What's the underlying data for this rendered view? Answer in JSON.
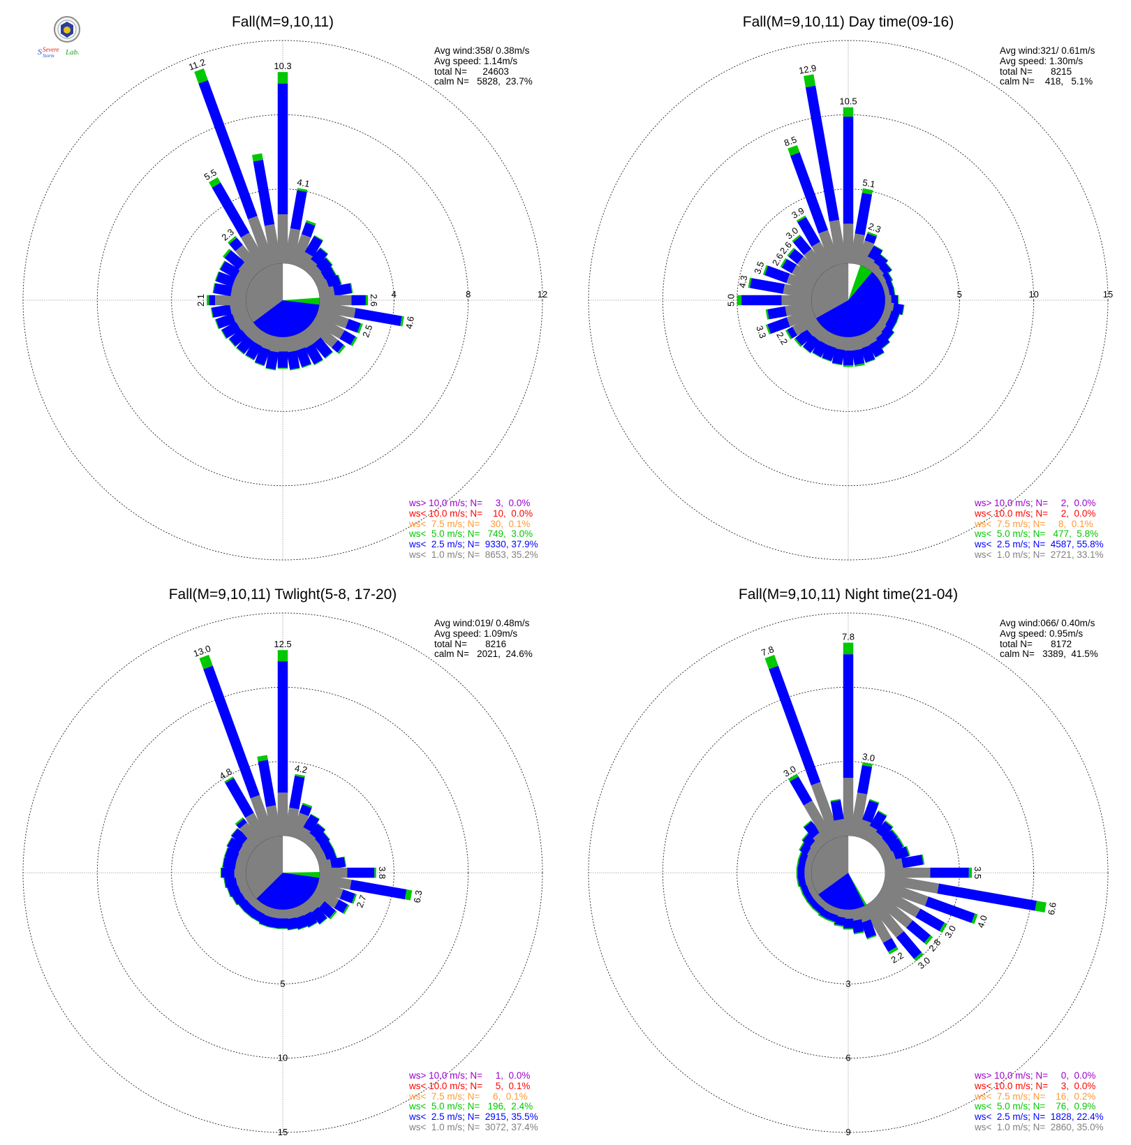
{
  "logo": {
    "text_a": "Severe",
    "text_b": "Storm",
    "text_c": "Lab."
  },
  "colors": {
    "calm": "#808080",
    "b1": "#808080",
    "b2": "#0000ff",
    "b3": "#00c800",
    "b4": "#ff9933",
    "b5": "#ff0000",
    "b6": "#9900cc"
  },
  "chart_data": [
    {
      "type": "polar-bar",
      "title": "Fall(M=9,10,11)",
      "stats": {
        "avg_wind": "Avg wind:358/ 0.38m/s",
        "avg_speed": "Avg speed: 1.14m/s",
        "total": "total N=      24603",
        "calm": "calm N=   5828,  23.7%"
      },
      "calm_pct": 23.7,
      "calm_split": [
        35.2,
        37.9,
        3.0
      ],
      "rings": [
        4,
        8,
        12
      ],
      "ring_label_axis": "east",
      "bars": [
        {
          "dir": 0,
          "total": 10.3,
          "label": "10.3"
        },
        {
          "dir": 10,
          "total": 4.1,
          "label": "4.1"
        },
        {
          "dir": 20,
          "total": 2.5
        },
        {
          "dir": 30,
          "total": 1.9
        },
        {
          "dir": 40,
          "total": 1.5
        },
        {
          "dir": 50,
          "total": 1.3
        },
        {
          "dir": 60,
          "total": 1.2
        },
        {
          "dir": 70,
          "total": 1.3
        },
        {
          "dir": 80,
          "total": 1.8
        },
        {
          "dir": 90,
          "total": 2.6,
          "label": "2.6"
        },
        {
          "dir": 100,
          "total": 4.6,
          "label": "4.6"
        },
        {
          "dir": 110,
          "total": 2.5,
          "label": "2.5"
        },
        {
          "dir": 120,
          "total": 2.5
        },
        {
          "dir": 130,
          "total": 2.2
        },
        {
          "dir": 140,
          "total": 1.9
        },
        {
          "dir": 150,
          "total": 1.9
        },
        {
          "dir": 160,
          "total": 1.8
        },
        {
          "dir": 170,
          "total": 1.8
        },
        {
          "dir": 180,
          "total": 1.7
        },
        {
          "dir": 190,
          "total": 1.8
        },
        {
          "dir": 200,
          "total": 1.7
        },
        {
          "dir": 210,
          "total": 1.6
        },
        {
          "dir": 220,
          "total": 1.6
        },
        {
          "dir": 230,
          "total": 1.6
        },
        {
          "dir": 240,
          "total": 1.7
        },
        {
          "dir": 250,
          "total": 1.8
        },
        {
          "dir": 260,
          "total": 1.9
        },
        {
          "dir": 270,
          "total": 2.1,
          "label": "2.1"
        },
        {
          "dir": 280,
          "total": 1.8
        },
        {
          "dir": 290,
          "total": 1.8
        },
        {
          "dir": 300,
          "total": 1.8
        },
        {
          "dir": 310,
          "total": 2.0
        },
        {
          "dir": 320,
          "total": 2.3,
          "label": "2.3"
        },
        {
          "dir": 330,
          "total": 5.5,
          "label": "5.5"
        },
        {
          "dir": 340,
          "total": 11.2,
          "label": "11.2"
        },
        {
          "dir": 350,
          "total": 6.0
        }
      ],
      "legend": [
        {
          "text": "ws> 10.0 m/s; N=     3,  0.0%",
          "color": "#9900cc"
        },
        {
          "text": "ws< 10.0 m/s; N=    10,  0.0%",
          "color": "#ff0000"
        },
        {
          "text": "ws<  7.5 m/s; N=    30,  0.1%",
          "color": "#ff9933"
        },
        {
          "text": "ws<  5.0 m/s; N=   749,  3.0%",
          "color": "#00c800"
        },
        {
          "text": "ws<  2.5 m/s; N=  9330, 37.9%",
          "color": "#0000ff"
        },
        {
          "text": "ws<  1.0 m/s; N=  8653, 35.2%",
          "color": "#808080"
        }
      ]
    },
    {
      "type": "polar-bar",
      "title": "Fall(M=9,10,11) Day time(09-16)",
      "stats": {
        "avg_wind": "Avg wind:321/ 0.61m/s",
        "avg_speed": "Avg speed: 1.30m/s",
        "total": "total N=       8215",
        "calm": "calm N=    418,   5.1%"
      },
      "calm_pct": 5.1,
      "calm_split": [
        33.1,
        55.8,
        5.8
      ],
      "rings": [
        5,
        10,
        15
      ],
      "ring_label_axis": "east",
      "bars": [
        {
          "dir": 0,
          "total": 10.5,
          "label": "10.5"
        },
        {
          "dir": 10,
          "total": 5.1,
          "label": "5.1"
        },
        {
          "dir": 20,
          "total": 2.3,
          "label": "2.3"
        },
        {
          "dir": 30,
          "total": 1.6
        },
        {
          "dir": 40,
          "total": 1.3
        },
        {
          "dir": 50,
          "total": 1.1
        },
        {
          "dir": 60,
          "total": 0.8
        },
        {
          "dir": 70,
          "total": 0.7
        },
        {
          "dir": 80,
          "total": 0.7
        },
        {
          "dir": 90,
          "total": 0.9
        },
        {
          "dir": 100,
          "total": 1.3
        },
        {
          "dir": 110,
          "total": 1.1
        },
        {
          "dir": 120,
          "total": 1.1
        },
        {
          "dir": 130,
          "total": 1.3
        },
        {
          "dir": 140,
          "total": 1.5
        },
        {
          "dir": 150,
          "total": 1.8
        },
        {
          "dir": 160,
          "total": 1.9
        },
        {
          "dir": 170,
          "total": 2.0
        },
        {
          "dir": 180,
          "total": 2.0
        },
        {
          "dir": 190,
          "total": 1.9
        },
        {
          "dir": 200,
          "total": 1.8
        },
        {
          "dir": 210,
          "total": 1.8
        },
        {
          "dir": 220,
          "total": 1.9
        },
        {
          "dir": 230,
          "total": 2.0
        },
        {
          "dir": 240,
          "total": 2.2,
          "label": "2.2"
        },
        {
          "dir": 250,
          "total": 3.3,
          "label": "3.3"
        },
        {
          "dir": 260,
          "total": 3.1
        },
        {
          "dir": 270,
          "total": 5.0,
          "label": "5.0"
        },
        {
          "dir": 280,
          "total": 4.3,
          "label": "4.3"
        },
        {
          "dir": 290,
          "total": 3.5,
          "label": "3.5"
        },
        {
          "dir": 300,
          "total": 2.6,
          "label": "2.6"
        },
        {
          "dir": 310,
          "total": 2.6,
          "label": "2.6"
        },
        {
          "dir": 320,
          "total": 3.0,
          "label": "3.0"
        },
        {
          "dir": 330,
          "total": 3.9,
          "label": "3.9"
        },
        {
          "dir": 340,
          "total": 8.5,
          "label": "8.5"
        },
        {
          "dir": 350,
          "total": 12.9,
          "label": "12.9"
        }
      ],
      "legend": [
        {
          "text": "ws> 10.0 m/s; N=     2,  0.0%",
          "color": "#9900cc"
        },
        {
          "text": "ws< 10.0 m/s; N=     2,  0.0%",
          "color": "#ff0000"
        },
        {
          "text": "ws<  7.5 m/s; N=     8,  0.1%",
          "color": "#ff9933"
        },
        {
          "text": "ws<  5.0 m/s; N=   477,  5.8%",
          "color": "#00c800"
        },
        {
          "text": "ws<  2.5 m/s; N=  4587, 55.8%",
          "color": "#0000ff"
        },
        {
          "text": "ws<  1.0 m/s; N=  2721, 33.1%",
          "color": "#808080"
        }
      ]
    },
    {
      "type": "polar-bar",
      "title": "Fall(M=9,10,11) Twlight(5-8, 17-20)",
      "stats": {
        "avg_wind": "Avg wind:019/ 0.48m/s",
        "avg_speed": "Avg speed: 1.09m/s",
        "total": "total N=       8216",
        "calm": "calm N=   2021,  24.6%"
      },
      "calm_pct": 24.6,
      "calm_split": [
        37.4,
        35.5,
        2.4
      ],
      "rings": [
        5,
        10,
        15
      ],
      "ring_label_axis": "south",
      "bars": [
        {
          "dir": 0,
          "total": 12.5,
          "label": "12.5"
        },
        {
          "dir": 10,
          "total": 4.2,
          "label": "4.2"
        },
        {
          "dir": 20,
          "total": 2.4
        },
        {
          "dir": 30,
          "total": 1.9
        },
        {
          "dir": 40,
          "total": 1.6
        },
        {
          "dir": 50,
          "total": 1.4
        },
        {
          "dir": 60,
          "total": 1.3
        },
        {
          "dir": 70,
          "total": 1.3
        },
        {
          "dir": 80,
          "total": 1.8
        },
        {
          "dir": 90,
          "total": 3.8,
          "label": "3.8"
        },
        {
          "dir": 100,
          "total": 6.3,
          "label": "6.3"
        },
        {
          "dir": 110,
          "total": 2.7,
          "label": "2.7"
        },
        {
          "dir": 120,
          "total": 2.5
        },
        {
          "dir": 130,
          "total": 2.0
        },
        {
          "dir": 140,
          "total": 1.8
        },
        {
          "dir": 150,
          "total": 1.6
        },
        {
          "dir": 160,
          "total": 1.5
        },
        {
          "dir": 170,
          "total": 1.4
        },
        {
          "dir": 180,
          "total": 1.3
        },
        {
          "dir": 190,
          "total": 1.3
        },
        {
          "dir": 200,
          "total": 1.3
        },
        {
          "dir": 210,
          "total": 1.2
        },
        {
          "dir": 220,
          "total": 1.2
        },
        {
          "dir": 230,
          "total": 1.2
        },
        {
          "dir": 240,
          "total": 1.3
        },
        {
          "dir": 250,
          "total": 1.4
        },
        {
          "dir": 260,
          "total": 1.5
        },
        {
          "dir": 270,
          "total": 1.7
        },
        {
          "dir": 280,
          "total": 1.6
        },
        {
          "dir": 290,
          "total": 1.6
        },
        {
          "dir": 300,
          "total": 1.7
        },
        {
          "dir": 310,
          "total": 1.8
        },
        {
          "dir": 320,
          "total": 2.1
        },
        {
          "dir": 330,
          "total": 4.8,
          "label": "4.8"
        },
        {
          "dir": 340,
          "total": 13.0,
          "label": "13.0"
        },
        {
          "dir": 350,
          "total": 5.5
        }
      ],
      "legend": [
        {
          "text": "ws> 10.0 m/s; N=     1,  0.0%",
          "color": "#9900cc"
        },
        {
          "text": "ws< 10.0 m/s; N=     5,  0.1%",
          "color": "#ff0000"
        },
        {
          "text": "ws<  7.5 m/s; N=     6,  0.1%",
          "color": "#ff9933"
        },
        {
          "text": "ws<  5.0 m/s; N=   196,  2.4%",
          "color": "#00c800"
        },
        {
          "text": "ws<  2.5 m/s; N=  2915, 35.5%",
          "color": "#0000ff"
        },
        {
          "text": "ws<  1.0 m/s; N=  3072, 37.4%",
          "color": "#808080"
        }
      ]
    },
    {
      "type": "polar-bar",
      "title": "Fall(M=9,10,11) Night time(21-04)",
      "stats": {
        "avg_wind": "Avg wind:066/ 0.40m/s",
        "avg_speed": "Avg speed: 0.95m/s",
        "total": "total N=       8172",
        "calm": "calm N=   3389,  41.5%"
      },
      "calm_pct": 41.5,
      "calm_split": [
        35.0,
        22.4,
        0.9
      ],
      "rings": [
        3,
        6,
        9
      ],
      "ring_label_axis": "south",
      "bars": [
        {
          "dir": 0,
          "total": 7.8,
          "label": "7.8"
        },
        {
          "dir": 10,
          "total": 3.0,
          "label": "3.0"
        },
        {
          "dir": 20,
          "total": 1.6
        },
        {
          "dir": 30,
          "total": 1.3
        },
        {
          "dir": 40,
          "total": 1.1
        },
        {
          "dir": 50,
          "total": 1.0
        },
        {
          "dir": 60,
          "total": 1.0
        },
        {
          "dir": 70,
          "total": 1.1
        },
        {
          "dir": 80,
          "total": 1.6
        },
        {
          "dir": 90,
          "total": 3.5,
          "label": "3.5"
        },
        {
          "dir": 100,
          "total": 6.6,
          "label": "6.6"
        },
        {
          "dir": 110,
          "total": 4.0,
          "label": "4.0"
        },
        {
          "dir": 120,
          "total": 3.0,
          "label": "3.0"
        },
        {
          "dir": 130,
          "total": 2.8,
          "label": "2.8"
        },
        {
          "dir": 140,
          "total": 3.0,
          "label": "3.0"
        },
        {
          "dir": 150,
          "total": 2.2,
          "label": "2.2"
        },
        {
          "dir": 160,
          "total": 1.3
        },
        {
          "dir": 170,
          "total": 1.0
        },
        {
          "dir": 180,
          "total": 0.8
        },
        {
          "dir": 190,
          "total": 0.7
        },
        {
          "dir": 200,
          "total": 0.6
        },
        {
          "dir": 210,
          "total": 0.6
        },
        {
          "dir": 220,
          "total": 0.55
        },
        {
          "dir": 230,
          "total": 0.55
        },
        {
          "dir": 240,
          "total": 0.55
        },
        {
          "dir": 250,
          "total": 0.55
        },
        {
          "dir": 260,
          "total": 0.6
        },
        {
          "dir": 270,
          "total": 0.6
        },
        {
          "dir": 280,
          "total": 0.6
        },
        {
          "dir": 290,
          "total": 0.6
        },
        {
          "dir": 300,
          "total": 0.7
        },
        {
          "dir": 310,
          "total": 0.8
        },
        {
          "dir": 320,
          "total": 1.1
        },
        {
          "dir": 330,
          "total": 3.0,
          "label": "3.0"
        },
        {
          "dir": 340,
          "total": 7.8,
          "label": "7.8"
        },
        {
          "dir": 350,
          "total": 1.5
        }
      ],
      "legend": [
        {
          "text": "ws> 10.0 m/s; N=     0,  0.0%",
          "color": "#9900cc"
        },
        {
          "text": "ws< 10.0 m/s; N=     3,  0.0%",
          "color": "#ff0000"
        },
        {
          "text": "ws<  7.5 m/s; N=    16,  0.2%",
          "color": "#ff9933"
        },
        {
          "text": "ws<  5.0 m/s; N=    76,  0.9%",
          "color": "#00c800"
        },
        {
          "text": "ws<  2.5 m/s; N=  1828, 22.4%",
          "color": "#0000ff"
        },
        {
          "text": "ws<  1.0 m/s; N=  2860, 35.0%",
          "color": "#808080"
        }
      ]
    }
  ]
}
